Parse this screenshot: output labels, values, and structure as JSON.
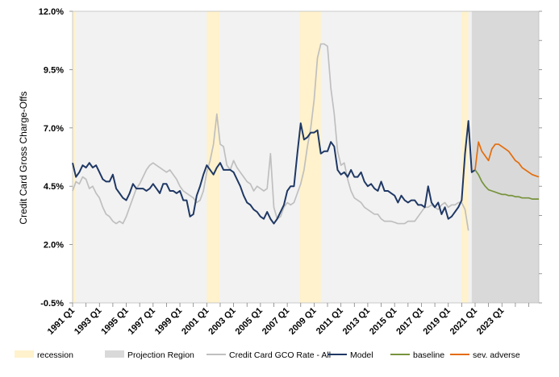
{
  "chart_data": {
    "type": "line",
    "title": "",
    "ylabel": "Credit Card  Gross Charge-Offs",
    "ylim": [
      -0.5,
      12.0
    ],
    "y_ticks": [
      -0.5,
      2.0,
      4.5,
      7.0,
      9.5,
      12.0
    ],
    "y_tick_labels": [
      "-0.5%",
      "2.0%",
      "4.5%",
      "7.0%",
      "9.5%",
      "12.0%"
    ],
    "xlim": [
      1991.0,
      2025.75
    ],
    "x_ticks": [
      1991,
      1993,
      1995,
      1997,
      1999,
      2001,
      2003,
      2005,
      2007,
      2009,
      2011,
      2013,
      2015,
      2017,
      2019,
      2021,
      2023
    ],
    "x_tick_labels": [
      "1991 Q1",
      "1993 Q1",
      "1995 Q1",
      "1997 Q1",
      "1999 Q1",
      "2001 Q1",
      "2003 Q1",
      "2005 Q1",
      "2007 Q1",
      "2009 Q1",
      "2011 Q1",
      "2013 Q1",
      "2015 Q1",
      "2017 Q1",
      "2019 Q1",
      "2021 Q1",
      "2023 Q1"
    ],
    "grid": false,
    "legend_position": "bottom",
    "recessions": [
      [
        1991.0,
        1991.25
      ],
      [
        2001.0,
        2001.95
      ],
      [
        2007.95,
        2009.5
      ],
      [
        2020.0,
        2020.5
      ]
    ],
    "projection_region": [
      2020.75,
      2025.75
    ],
    "legend": [
      {
        "label": "recession",
        "kind": "swatch",
        "color": "#fff2cc"
      },
      {
        "label": "Projection Region",
        "kind": "swatch",
        "color": "#d9d9d9"
      },
      {
        "label": "Credit Card  GCO Rate - All",
        "kind": "line",
        "color": "#bfbfbf"
      },
      {
        "label": "Model",
        "kind": "line",
        "color": "#1f3864"
      },
      {
        "label": "baseline",
        "kind": "line",
        "color": "#77933c"
      },
      {
        "label": "sev. adverse",
        "kind": "line",
        "color": "#e46c0a"
      }
    ],
    "series": [
      {
        "name": "Credit Card  GCO Rate - All",
        "color": "#bfbfbf",
        "x": [
          1991.0,
          1991.25,
          1991.5,
          1991.75,
          1992.0,
          1992.25,
          1992.5,
          1992.75,
          1993.0,
          1993.25,
          1993.5,
          1993.75,
          1994.0,
          1994.25,
          1994.5,
          1994.75,
          1995.0,
          1995.25,
          1995.5,
          1995.75,
          1996.0,
          1996.25,
          1996.5,
          1996.75,
          1997.0,
          1997.25,
          1997.5,
          1997.75,
          1998.0,
          1998.25,
          1998.5,
          1998.75,
          1999.0,
          1999.25,
          1999.5,
          1999.75,
          2000.0,
          2000.25,
          2000.5,
          2000.75,
          2001.0,
          2001.25,
          2001.5,
          2001.75,
          2002.0,
          2002.25,
          2002.5,
          2002.75,
          2003.0,
          2003.25,
          2003.5,
          2003.75,
          2004.0,
          2004.25,
          2004.5,
          2004.75,
          2005.0,
          2005.25,
          2005.5,
          2005.75,
          2006.0,
          2006.25,
          2006.5,
          2006.75,
          2007.0,
          2007.25,
          2007.5,
          2007.75,
          2008.0,
          2008.25,
          2008.5,
          2008.75,
          2009.0,
          2009.25,
          2009.5,
          2009.75,
          2010.0,
          2010.25,
          2010.5,
          2010.75,
          2011.0,
          2011.25,
          2011.5,
          2011.75,
          2012.0,
          2012.25,
          2012.5,
          2012.75,
          2013.0,
          2013.25,
          2013.5,
          2013.75,
          2014.0,
          2014.25,
          2014.5,
          2014.75,
          2015.0,
          2015.25,
          2015.5,
          2015.75,
          2016.0,
          2016.25,
          2016.5,
          2016.75,
          2017.0,
          2017.25,
          2017.5,
          2017.75,
          2018.0,
          2018.25,
          2018.5,
          2018.75,
          2019.0,
          2019.25,
          2019.5,
          2019.75,
          2020.0,
          2020.25,
          2020.5,
          2020.75
        ],
        "values": [
          4.3,
          4.7,
          4.6,
          4.9,
          4.8,
          4.4,
          4.5,
          4.2,
          4.0,
          3.6,
          3.3,
          3.2,
          3.0,
          2.9,
          3.0,
          2.9,
          3.2,
          3.6,
          4.0,
          4.4,
          4.6,
          4.9,
          5.2,
          5.4,
          5.5,
          5.4,
          5.3,
          5.2,
          5.1,
          5.2,
          5.0,
          4.8,
          4.5,
          4.3,
          4.2,
          4.1,
          4.0,
          3.8,
          3.9,
          4.3,
          5.1,
          5.6,
          6.3,
          7.6,
          6.3,
          6.2,
          5.4,
          5.2,
          5.6,
          5.3,
          5.1,
          4.9,
          4.7,
          4.6,
          4.3,
          4.5,
          4.4,
          4.3,
          4.4,
          5.9,
          3.6,
          3.1,
          3.2,
          3.6,
          3.8,
          3.7,
          3.8,
          4.2,
          4.6,
          5.2,
          6.2,
          7.0,
          8.2,
          10.0,
          10.6,
          10.6,
          10.5,
          8.7,
          7.6,
          6.0,
          5.4,
          5.5,
          4.8,
          4.3,
          4.0,
          3.9,
          3.8,
          3.6,
          3.5,
          3.4,
          3.3,
          3.3,
          3.1,
          3.0,
          3.0,
          3.0,
          2.95,
          2.9,
          2.9,
          2.9,
          3.0,
          3.0,
          3.0,
          3.2,
          3.4,
          3.6,
          3.6,
          3.7,
          3.6,
          3.5,
          3.7,
          3.8,
          3.6,
          3.7,
          3.7,
          3.8,
          3.8,
          3.5,
          2.6,
          null
        ]
      },
      {
        "name": "Model",
        "color": "#1f3864",
        "x": [
          1991.0,
          1991.25,
          1991.5,
          1991.75,
          1992.0,
          1992.25,
          1992.5,
          1992.75,
          1993.0,
          1993.25,
          1993.5,
          1993.75,
          1994.0,
          1994.25,
          1994.5,
          1994.75,
          1995.0,
          1995.25,
          1995.5,
          1995.75,
          1996.0,
          1996.25,
          1996.5,
          1996.75,
          1997.0,
          1997.25,
          1997.5,
          1997.75,
          1998.0,
          1998.25,
          1998.5,
          1998.75,
          1999.0,
          1999.25,
          1999.5,
          1999.75,
          2000.0,
          2000.25,
          2000.5,
          2000.75,
          2001.0,
          2001.25,
          2001.5,
          2001.75,
          2002.0,
          2002.25,
          2002.5,
          2002.75,
          2003.0,
          2003.25,
          2003.5,
          2003.75,
          2004.0,
          2004.25,
          2004.5,
          2004.75,
          2005.0,
          2005.25,
          2005.5,
          2005.75,
          2006.0,
          2006.25,
          2006.5,
          2006.75,
          2007.0,
          2007.25,
          2007.5,
          2007.75,
          2008.0,
          2008.25,
          2008.5,
          2008.75,
          2009.0,
          2009.25,
          2009.5,
          2009.75,
          2010.0,
          2010.25,
          2010.5,
          2010.75,
          2011.0,
          2011.25,
          2011.5,
          2011.75,
          2012.0,
          2012.25,
          2012.5,
          2012.75,
          2013.0,
          2013.25,
          2013.5,
          2013.75,
          2014.0,
          2014.25,
          2014.5,
          2014.75,
          2015.0,
          2015.25,
          2015.5,
          2015.75,
          2016.0,
          2016.25,
          2016.5,
          2016.75,
          2017.0,
          2017.25,
          2017.5,
          2017.75,
          2018.0,
          2018.25,
          2018.5,
          2018.75,
          2019.0,
          2019.25,
          2019.5,
          2019.75,
          2020.0,
          2020.25,
          2020.5,
          2020.75,
          2021.0
        ],
        "values": [
          5.5,
          4.9,
          5.1,
          5.4,
          5.3,
          5.5,
          5.3,
          5.4,
          5.1,
          4.8,
          4.7,
          4.7,
          5.0,
          4.4,
          4.2,
          4.0,
          3.9,
          4.2,
          4.6,
          4.4,
          4.4,
          4.4,
          4.3,
          4.4,
          4.6,
          4.4,
          4.2,
          4.6,
          4.6,
          4.3,
          4.3,
          4.2,
          4.3,
          3.9,
          3.9,
          3.2,
          3.3,
          4.1,
          4.5,
          5.0,
          5.4,
          5.2,
          5.0,
          5.3,
          5.5,
          5.2,
          5.2,
          5.2,
          5.1,
          4.8,
          4.5,
          4.1,
          3.8,
          3.7,
          3.5,
          3.4,
          3.2,
          3.1,
          3.4,
          3.1,
          2.9,
          3.1,
          3.4,
          3.7,
          4.3,
          4.5,
          4.5,
          5.9,
          7.2,
          6.5,
          6.6,
          6.8,
          6.8,
          6.9,
          5.9,
          6.0,
          6.0,
          6.4,
          6.2,
          5.2,
          5.0,
          5.1,
          4.9,
          5.2,
          4.9,
          4.9,
          5.1,
          4.7,
          4.5,
          4.6,
          4.4,
          4.3,
          4.7,
          4.3,
          4.3,
          4.2,
          4.1,
          3.8,
          4.1,
          3.9,
          3.8,
          3.9,
          3.9,
          3.7,
          3.7,
          3.6,
          4.5,
          3.8,
          3.6,
          3.8,
          3.3,
          3.6,
          3.1,
          3.2,
          3.4,
          3.6,
          3.9,
          5.9,
          7.3,
          5.1,
          5.2
        ]
      },
      {
        "name": "baseline",
        "color": "#77933c",
        "x": [
          2021.0,
          2021.25,
          2021.5,
          2021.75,
          2022.0,
          2022.25,
          2022.5,
          2022.75,
          2023.0,
          2023.25,
          2023.5,
          2023.75,
          2024.0,
          2024.25,
          2024.5,
          2024.75,
          2025.0,
          2025.25,
          2025.5,
          2025.75
        ],
        "values": [
          5.2,
          5.0,
          4.7,
          4.5,
          4.35,
          4.3,
          4.25,
          4.2,
          4.15,
          4.15,
          4.1,
          4.1,
          4.05,
          4.05,
          4.0,
          4.0,
          4.0,
          3.95,
          3.95,
          3.95
        ]
      },
      {
        "name": "sev. adverse",
        "color": "#e46c0a",
        "x": [
          2021.0,
          2021.25,
          2021.5,
          2021.75,
          2022.0,
          2022.25,
          2022.5,
          2022.75,
          2023.0,
          2023.25,
          2023.5,
          2023.75,
          2024.0,
          2024.25,
          2024.5,
          2024.75,
          2025.0,
          2025.25,
          2025.5,
          2025.75
        ],
        "values": [
          5.2,
          6.4,
          6.0,
          5.8,
          5.6,
          6.1,
          6.3,
          6.3,
          6.2,
          6.1,
          6.0,
          5.8,
          5.6,
          5.5,
          5.3,
          5.2,
          5.1,
          5.0,
          4.95,
          4.9
        ]
      }
    ]
  }
}
